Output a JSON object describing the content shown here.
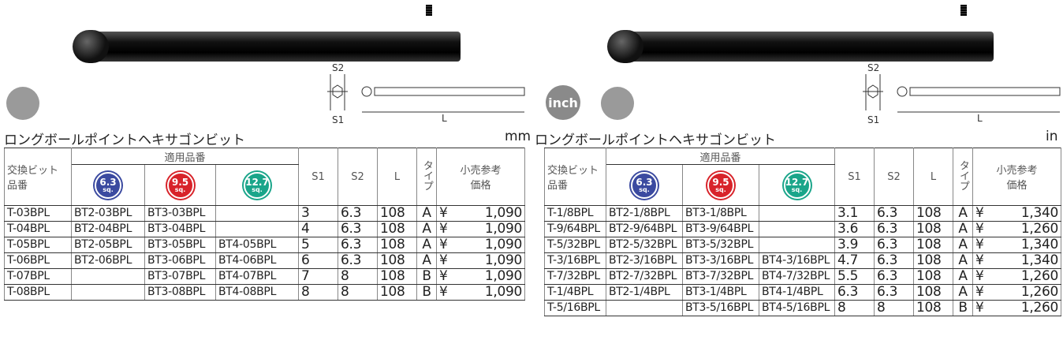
{
  "panels": [
    {
      "title": "ロングボールポイントヘキサゴンビット",
      "unit": "mm",
      "diagram": {
        "s2": "S2",
        "s1": "S1",
        "l": "L"
      },
      "header": {
        "part_no": "交換ビット\n品番",
        "applicable": "適用品番",
        "badges": [
          {
            "size": "6.3",
            "unit": "sq."
          },
          {
            "size": "9.5",
            "unit": "sq."
          },
          {
            "size": "12.7",
            "unit": "sq."
          }
        ],
        "s1": "S1",
        "s2": "S2",
        "l": "L",
        "type": "タイプ",
        "price": "小売参考\n価格"
      },
      "currency": "¥",
      "rows": [
        [
          "T-03BPL",
          "BT2-03BPL",
          "BT3-03BPL",
          "",
          "3",
          "6.3",
          "108",
          "A",
          "1,090"
        ],
        [
          "T-04BPL",
          "BT2-04BPL",
          "BT3-04BPL",
          "",
          "4",
          "6.3",
          "108",
          "A",
          "1,090"
        ],
        [
          "T-05BPL",
          "BT2-05BPL",
          "BT3-05BPL",
          "BT4-05BPL",
          "5",
          "6.3",
          "108",
          "A",
          "1,090"
        ],
        [
          "T-06BPL",
          "BT2-06BPL",
          "BT3-06BPL",
          "BT4-06BPL",
          "6",
          "6.3",
          "108",
          "A",
          "1,090"
        ],
        [
          "T-07BPL",
          "",
          "BT3-07BPL",
          "BT4-07BPL",
          "7",
          "8",
          "108",
          "B",
          "1,090"
        ],
        [
          "T-08BPL",
          "",
          "BT3-08BPL",
          "BT4-08BPL",
          "8",
          "8",
          "108",
          "B",
          "1,090"
        ]
      ]
    },
    {
      "title": "ロングボールポイントヘキサゴンビット",
      "unit": "in",
      "badge": "inch",
      "diagram": {
        "s2": "S2",
        "s1": "S1",
        "l": "L"
      },
      "header": {
        "part_no": "交換ビット\n品番",
        "applicable": "適用品番",
        "badges": [
          {
            "size": "6.3",
            "unit": "sq."
          },
          {
            "size": "9.5",
            "unit": "sq."
          },
          {
            "size": "12.7",
            "unit": "sq."
          }
        ],
        "s1": "S1",
        "s2": "S2",
        "l": "L",
        "type": "タイプ",
        "price": "小売参考\n価格"
      },
      "currency": "¥",
      "rows": [
        [
          "T-1/8BPL",
          "BT2-1/8BPL",
          "BT3-1/8BPL",
          "",
          "3.1",
          "6.3",
          "108",
          "A",
          "1,340"
        ],
        [
          "T-9/64BPL",
          "BT2-9/64BPL",
          "BT3-9/64BPL",
          "",
          "3.6",
          "6.3",
          "108",
          "A",
          "1,260"
        ],
        [
          "T-5/32BPL",
          "BT2-5/32BPL",
          "BT3-5/32BPL",
          "",
          "3.9",
          "6.3",
          "108",
          "A",
          "1,340"
        ],
        [
          "T-3/16BPL",
          "BT2-3/16BPL",
          "BT3-3/16BPL",
          "BT4-3/16BPL",
          "4.7",
          "6.3",
          "108",
          "A",
          "1,340"
        ],
        [
          "T-7/32BPL",
          "BT2-7/32BPL",
          "BT3-7/32BPL",
          "BT4-7/32BPL",
          "5.5",
          "6.3",
          "108",
          "A",
          "1,260"
        ],
        [
          "T-1/4BPL",
          "BT2-1/4BPL",
          "BT3-1/4BPL",
          "BT4-1/4BPL",
          "6.3",
          "6.3",
          "108",
          "A",
          "1,260"
        ],
        [
          "T-5/16BPL",
          "",
          "BT3-5/16BPL",
          "BT4-5/16BPL",
          "8",
          "8",
          "108",
          "B",
          "1,260"
        ]
      ]
    }
  ]
}
